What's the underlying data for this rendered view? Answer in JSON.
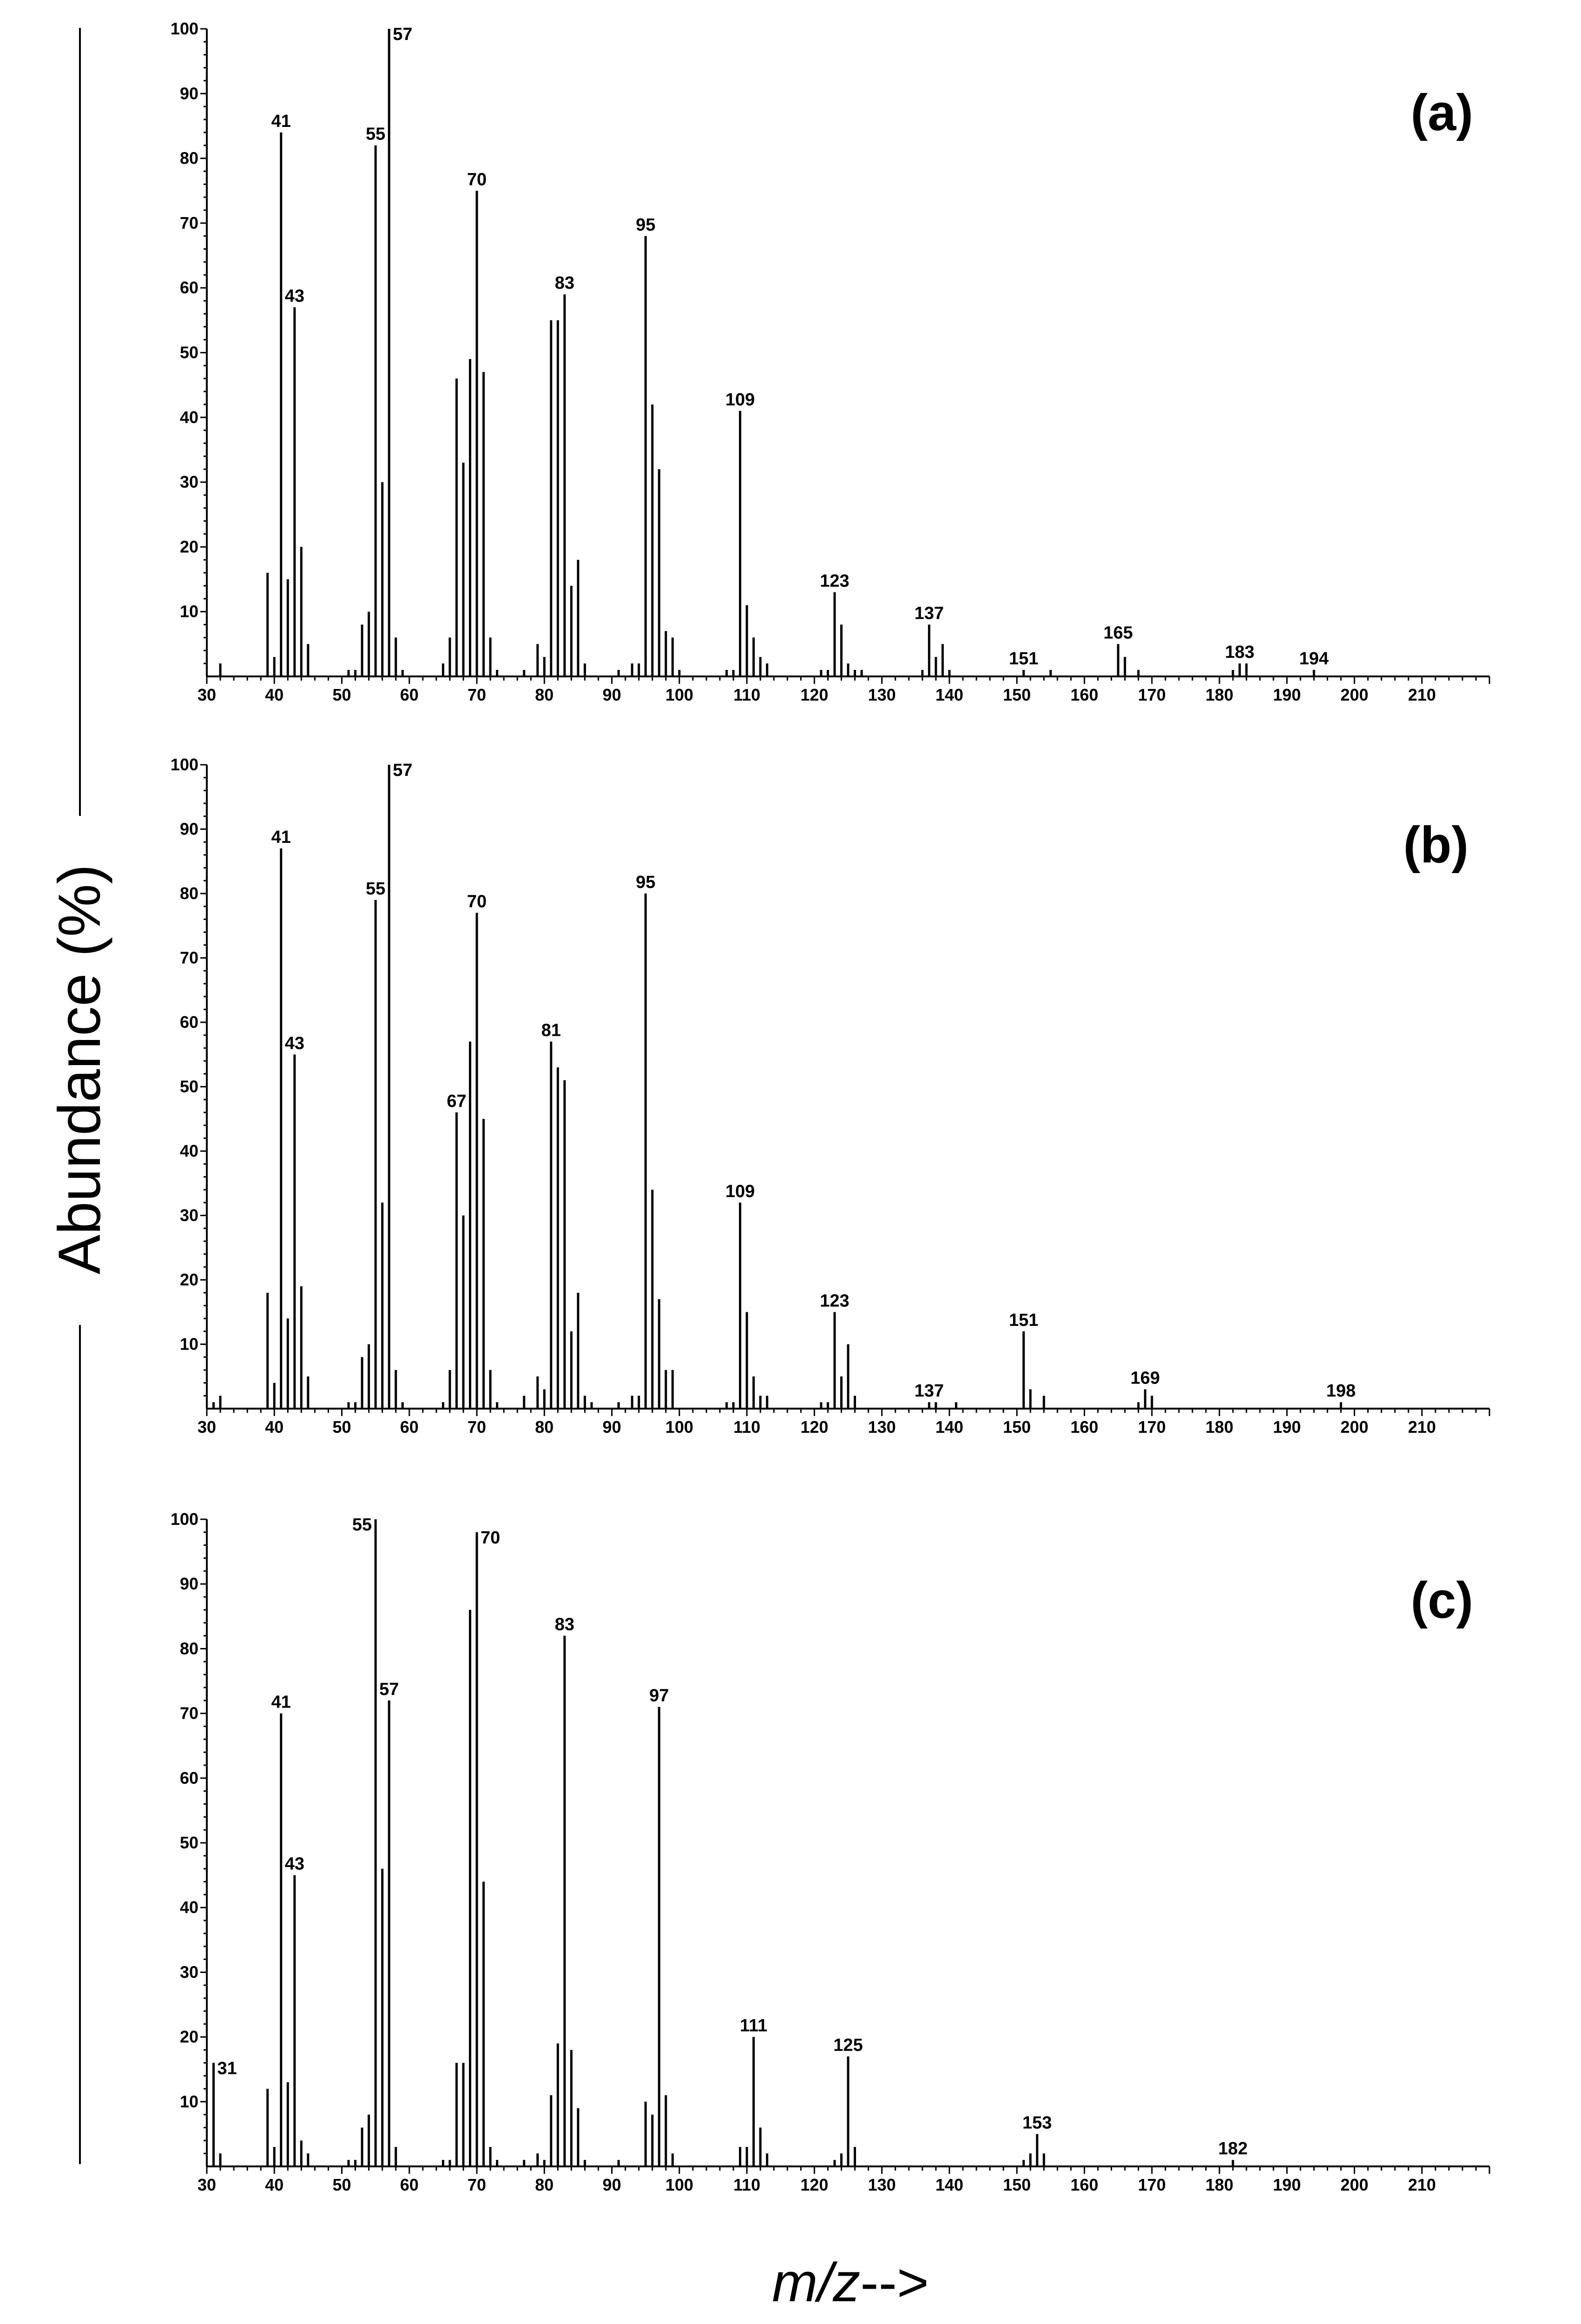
{
  "chart_data": {
    "type": "bar",
    "ylabel": "Abundance (%)",
    "xlabel_italic": "m/z",
    "xlabel_suffix": "-->",
    "panels": [
      {
        "label": "(a)",
        "xlim": [
          30,
          220
        ],
        "ylim": [
          0,
          100
        ],
        "x_ticks": [
          30,
          40,
          50,
          60,
          70,
          80,
          90,
          100,
          110,
          120,
          130,
          140,
          150,
          160,
          170,
          180,
          190,
          200,
          210
        ],
        "y_ticks": [
          10,
          20,
          30,
          40,
          50,
          60,
          70,
          80,
          90,
          100
        ],
        "peaks": [
          [
            32,
            2
          ],
          [
            39,
            16
          ],
          [
            40,
            3
          ],
          [
            41,
            84
          ],
          [
            42,
            15
          ],
          [
            43,
            57
          ],
          [
            44,
            20
          ],
          [
            45,
            5
          ],
          [
            51,
            1
          ],
          [
            52,
            1
          ],
          [
            53,
            8
          ],
          [
            54,
            10
          ],
          [
            55,
            82
          ],
          [
            56,
            30
          ],
          [
            57,
            100
          ],
          [
            58,
            6
          ],
          [
            59,
            1
          ],
          [
            65,
            2
          ],
          [
            66,
            6
          ],
          [
            67,
            46
          ],
          [
            68,
            33
          ],
          [
            69,
            49
          ],
          [
            70,
            75
          ],
          [
            71,
            47
          ],
          [
            72,
            6
          ],
          [
            73,
            1
          ],
          [
            77,
            1
          ],
          [
            79,
            5
          ],
          [
            80,
            3
          ],
          [
            81,
            55
          ],
          [
            82,
            55
          ],
          [
            83,
            59
          ],
          [
            84,
            14
          ],
          [
            85,
            18
          ],
          [
            86,
            2
          ],
          [
            91,
            1
          ],
          [
            93,
            2
          ],
          [
            94,
            2
          ],
          [
            95,
            68
          ],
          [
            96,
            42
          ],
          [
            97,
            32
          ],
          [
            98,
            7
          ],
          [
            99,
            6
          ],
          [
            100,
            1
          ],
          [
            107,
            1
          ],
          [
            108,
            1
          ],
          [
            109,
            41
          ],
          [
            110,
            11
          ],
          [
            111,
            6
          ],
          [
            112,
            3
          ],
          [
            113,
            2
          ],
          [
            121,
            1
          ],
          [
            122,
            1
          ],
          [
            123,
            13
          ],
          [
            124,
            8
          ],
          [
            125,
            2
          ],
          [
            126,
            1
          ],
          [
            127,
            1
          ],
          [
            136,
            1
          ],
          [
            137,
            8
          ],
          [
            138,
            3
          ],
          [
            139,
            5
          ],
          [
            140,
            1
          ],
          [
            151,
            1
          ],
          [
            155,
            1
          ],
          [
            165,
            5
          ],
          [
            166,
            3
          ],
          [
            168,
            1
          ],
          [
            182,
            1
          ],
          [
            183,
            2
          ],
          [
            184,
            2
          ],
          [
            194,
            1
          ]
        ],
        "annotations": [
          {
            "x": 41,
            "y": 84,
            "text": "41"
          },
          {
            "x": 43,
            "y": 57,
            "text": "43"
          },
          {
            "x": 55,
            "y": 82,
            "text": "55"
          },
          {
            "x": 57,
            "y": 100,
            "text": "57",
            "side": "right"
          },
          {
            "x": 70,
            "y": 75,
            "text": "70"
          },
          {
            "x": 83,
            "y": 59,
            "text": "83"
          },
          {
            "x": 95,
            "y": 68,
            "text": "95"
          },
          {
            "x": 109,
            "y": 41,
            "text": "109"
          },
          {
            "x": 123,
            "y": 13,
            "text": "123"
          },
          {
            "x": 137,
            "y": 8,
            "text": "137"
          },
          {
            "x": 151,
            "y": 1,
            "text": "151"
          },
          {
            "x": 165,
            "y": 5,
            "text": "165"
          },
          {
            "x": 183,
            "y": 2,
            "text": "183"
          },
          {
            "x": 194,
            "y": 1,
            "text": "194"
          }
        ]
      },
      {
        "label": "(b)",
        "xlim": [
          30,
          220
        ],
        "ylim": [
          0,
          100
        ],
        "x_ticks": [
          30,
          40,
          50,
          60,
          70,
          80,
          90,
          100,
          110,
          120,
          130,
          140,
          150,
          160,
          170,
          180,
          190,
          200,
          210
        ],
        "y_ticks": [
          10,
          20,
          30,
          40,
          50,
          60,
          70,
          80,
          90,
          100
        ],
        "peaks": [
          [
            31,
            1
          ],
          [
            32,
            2
          ],
          [
            39,
            18
          ],
          [
            40,
            4
          ],
          [
            41,
            87
          ],
          [
            42,
            14
          ],
          [
            43,
            55
          ],
          [
            44,
            19
          ],
          [
            45,
            5
          ],
          [
            51,
            1
          ],
          [
            52,
            1
          ],
          [
            53,
            8
          ],
          [
            54,
            10
          ],
          [
            55,
            79
          ],
          [
            56,
            32
          ],
          [
            57,
            100
          ],
          [
            58,
            6
          ],
          [
            59,
            1
          ],
          [
            65,
            1
          ],
          [
            66,
            6
          ],
          [
            67,
            46
          ],
          [
            68,
            30
          ],
          [
            69,
            57
          ],
          [
            70,
            77
          ],
          [
            71,
            45
          ],
          [
            72,
            6
          ],
          [
            73,
            1
          ],
          [
            77,
            2
          ],
          [
            79,
            5
          ],
          [
            80,
            3
          ],
          [
            81,
            57
          ],
          [
            82,
            53
          ],
          [
            83,
            51
          ],
          [
            84,
            12
          ],
          [
            85,
            18
          ],
          [
            86,
            2
          ],
          [
            87,
            1
          ],
          [
            91,
            1
          ],
          [
            93,
            2
          ],
          [
            94,
            2
          ],
          [
            95,
            80
          ],
          [
            96,
            34
          ],
          [
            97,
            17
          ],
          [
            98,
            6
          ],
          [
            99,
            6
          ],
          [
            107,
            1
          ],
          [
            108,
            1
          ],
          [
            109,
            32
          ],
          [
            110,
            15
          ],
          [
            111,
            5
          ],
          [
            112,
            2
          ],
          [
            113,
            2
          ],
          [
            121,
            1
          ],
          [
            122,
            1
          ],
          [
            123,
            15
          ],
          [
            124,
            5
          ],
          [
            125,
            10
          ],
          [
            126,
            2
          ],
          [
            137,
            1
          ],
          [
            138,
            1
          ],
          [
            141,
            1
          ],
          [
            151,
            12
          ],
          [
            152,
            3
          ],
          [
            154,
            2
          ],
          [
            168,
            1
          ],
          [
            169,
            3
          ],
          [
            170,
            2
          ],
          [
            198,
            1
          ]
        ],
        "annotations": [
          {
            "x": 41,
            "y": 87,
            "text": "41"
          },
          {
            "x": 43,
            "y": 55,
            "text": "43"
          },
          {
            "x": 55,
            "y": 79,
            "text": "55"
          },
          {
            "x": 57,
            "y": 100,
            "text": "57",
            "side": "right"
          },
          {
            "x": 67,
            "y": 46,
            "text": "67"
          },
          {
            "x": 70,
            "y": 77,
            "text": "70"
          },
          {
            "x": 81,
            "y": 57,
            "text": "81"
          },
          {
            "x": 95,
            "y": 80,
            "text": "95"
          },
          {
            "x": 109,
            "y": 32,
            "text": "109"
          },
          {
            "x": 123,
            "y": 15,
            "text": "123"
          },
          {
            "x": 137,
            "y": 1,
            "text": "137"
          },
          {
            "x": 151,
            "y": 12,
            "text": "151"
          },
          {
            "x": 169,
            "y": 3,
            "text": "169"
          },
          {
            "x": 198,
            "y": 1,
            "text": "198"
          }
        ]
      },
      {
        "label": "(c)",
        "xlim": [
          30,
          220
        ],
        "ylim": [
          0,
          100
        ],
        "x_ticks": [
          30,
          40,
          50,
          60,
          70,
          80,
          90,
          100,
          110,
          120,
          130,
          140,
          150,
          160,
          170,
          180,
          190,
          200,
          210
        ],
        "y_ticks": [
          10,
          20,
          30,
          40,
          50,
          60,
          70,
          80,
          90,
          100
        ],
        "peaks": [
          [
            31,
            16
          ],
          [
            32,
            2
          ],
          [
            39,
            12
          ],
          [
            40,
            3
          ],
          [
            41,
            70
          ],
          [
            42,
            13
          ],
          [
            43,
            45
          ],
          [
            44,
            4
          ],
          [
            45,
            2
          ],
          [
            51,
            1
          ],
          [
            52,
            1
          ],
          [
            53,
            6
          ],
          [
            54,
            8
          ],
          [
            55,
            100
          ],
          [
            56,
            46
          ],
          [
            57,
            72
          ],
          [
            58,
            3
          ],
          [
            65,
            1
          ],
          [
            66,
            1
          ],
          [
            67,
            16
          ],
          [
            68,
            16
          ],
          [
            69,
            86
          ],
          [
            70,
            98
          ],
          [
            71,
            44
          ],
          [
            72,
            3
          ],
          [
            73,
            1
          ],
          [
            77,
            1
          ],
          [
            79,
            2
          ],
          [
            80,
            1
          ],
          [
            81,
            11
          ],
          [
            82,
            19
          ],
          [
            83,
            82
          ],
          [
            84,
            18
          ],
          [
            85,
            9
          ],
          [
            86,
            1
          ],
          [
            91,
            1
          ],
          [
            95,
            10
          ],
          [
            96,
            8
          ],
          [
            97,
            71
          ],
          [
            98,
            11
          ],
          [
            99,
            2
          ],
          [
            109,
            3
          ],
          [
            110,
            3
          ],
          [
            111,
            20
          ],
          [
            112,
            6
          ],
          [
            113,
            2
          ],
          [
            123,
            1
          ],
          [
            124,
            2
          ],
          [
            125,
            17
          ],
          [
            126,
            3
          ],
          [
            151,
            1
          ],
          [
            152,
            2
          ],
          [
            153,
            5
          ],
          [
            154,
            2
          ],
          [
            182,
            1
          ]
        ],
        "annotations": [
          {
            "x": 31,
            "y": 16,
            "text": "31",
            "side": "right"
          },
          {
            "x": 41,
            "y": 70,
            "text": "41"
          },
          {
            "x": 43,
            "y": 45,
            "text": "43"
          },
          {
            "x": 55,
            "y": 100,
            "text": "55",
            "side": "left"
          },
          {
            "x": 57,
            "y": 72,
            "text": "57"
          },
          {
            "x": 70,
            "y": 98,
            "text": "70",
            "side": "right"
          },
          {
            "x": 83,
            "y": 82,
            "text": "83"
          },
          {
            "x": 97,
            "y": 71,
            "text": "97"
          },
          {
            "x": 111,
            "y": 20,
            "text": "111"
          },
          {
            "x": 125,
            "y": 17,
            "text": "125"
          },
          {
            "x": 153,
            "y": 5,
            "text": "153"
          },
          {
            "x": 182,
            "y": 1,
            "text": "182"
          }
        ]
      }
    ]
  }
}
